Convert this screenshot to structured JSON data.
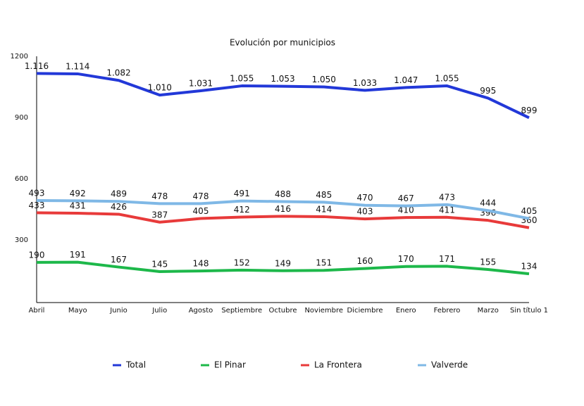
{
  "chart_data": {
    "type": "line",
    "title": "Evolución por municipios",
    "categories": [
      "Abril",
      "Mayo",
      "Junio",
      "Julio",
      "Agosto",
      "Septiembre",
      "Octubre",
      "Noviembre",
      "Diciembre",
      "Enero",
      "Febrero",
      "Marzo",
      "Sin título 1"
    ],
    "ylim": [
      0,
      1200
    ],
    "yticks": [
      300,
      600,
      900,
      1200
    ],
    "grid": false,
    "legend": "bottom",
    "series": [
      {
        "name": "Total",
        "color": "#2238d8",
        "values": [
          1116,
          1114,
          1082,
          1010,
          1031,
          1055,
          1053,
          1050,
          1033,
          1047,
          1055,
          995,
          899
        ],
        "value_labels": [
          "1.116",
          "1.114",
          "1.082",
          "1.010",
          "1.031",
          "1.055",
          "1.053",
          "1.050",
          "1.033",
          "1.047",
          "1.055",
          "995",
          "899"
        ]
      },
      {
        "name": "El Pinar",
        "color": "#1db84a",
        "values": [
          190,
          191,
          167,
          145,
          148,
          152,
          149,
          151,
          160,
          170,
          171,
          155,
          134
        ]
      },
      {
        "name": "La Frontera",
        "color": "#e83a3a",
        "values": [
          433,
          431,
          426,
          387,
          405,
          412,
          416,
          414,
          403,
          410,
          411,
          396,
          360
        ]
      },
      {
        "name": "Valverde",
        "color": "#7fb8e6",
        "values": [
          493,
          492,
          489,
          478,
          478,
          491,
          488,
          485,
          470,
          467,
          473,
          444,
          405
        ]
      }
    ]
  }
}
